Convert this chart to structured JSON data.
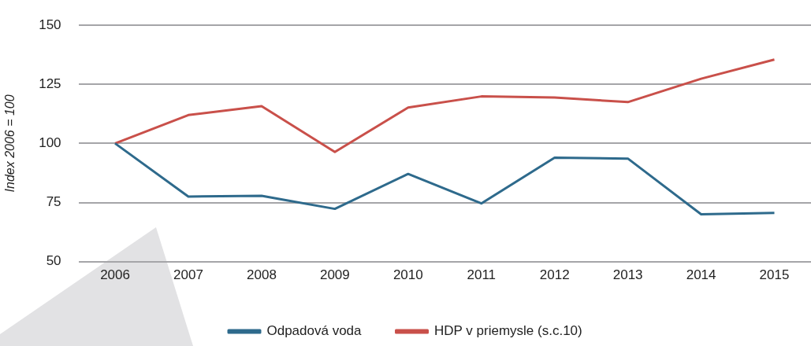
{
  "chart_data": {
    "type": "line",
    "ylabel": "Index 2006 = 100",
    "categories": [
      "2006",
      "2007",
      "2008",
      "2009",
      "2010",
      "2011",
      "2012",
      "2013",
      "2014",
      "2015"
    ],
    "series": [
      {
        "name": "Odpadová voda",
        "color": "#2e6a8c",
        "values": [
          100,
          77.5,
          77.8,
          72.3,
          87.1,
          74.6,
          94,
          93.6,
          70,
          70.6
        ]
      },
      {
        "name": "HDP v priemysle (s.c.10)",
        "color": "#c9504a",
        "values": [
          100,
          112,
          115.8,
          96.4,
          115.2,
          119.9,
          119.4,
          117.5,
          127.4,
          135.5
        ]
      }
    ],
    "ylim": [
      50,
      150
    ],
    "yticks": [
      50,
      75,
      100,
      125,
      150
    ],
    "grid": "y",
    "legend": "bottom",
    "marker": "none",
    "line_style": "solid"
  }
}
